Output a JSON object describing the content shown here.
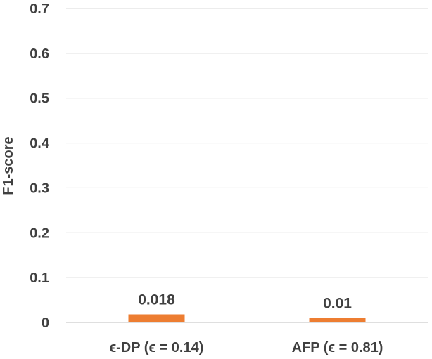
{
  "chart_data": {
    "type": "bar",
    "categories": [
      "ϵ-DP (ϵ = 0.14)",
      "AFP (ϵ = 0.81)"
    ],
    "values": [
      0.018,
      0.01
    ],
    "data_labels": [
      "0.018",
      "0.01"
    ],
    "ylabel": "F1-score",
    "xlabel": "",
    "title": "",
    "ylim": [
      0,
      0.7
    ],
    "yticks": [
      "0",
      "0.1",
      "0.2",
      "0.3",
      "0.4",
      "0.5",
      "0.6",
      "0.7"
    ],
    "grid": true,
    "legend": "none",
    "bar_color": "#ED7D31"
  }
}
